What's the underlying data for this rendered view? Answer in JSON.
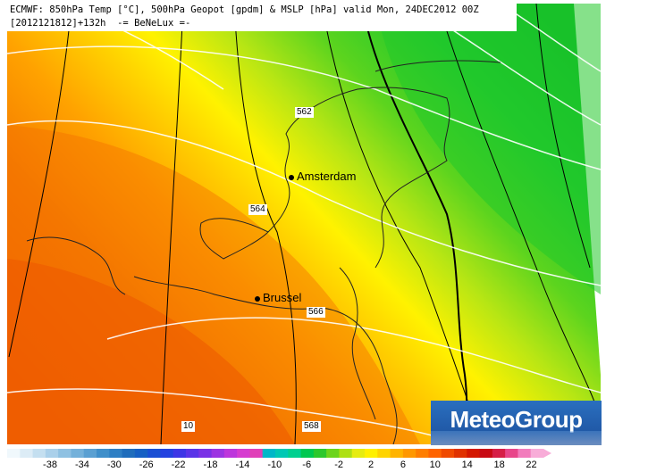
{
  "title": {
    "line1": "ECMWF: 850hPa Temp [°C], 500hPa Geopot [gpdm] & MSLP [hPa] valid Mon, 24DEC2012 00Z",
    "line2": "[2012121812]+132h  -= BeNeLux =-"
  },
  "cities": [
    {
      "name": "Amsterdam"
    },
    {
      "name": "Brussel"
    }
  ],
  "isolines": {
    "geopot_labels": [
      "562",
      "564",
      "566",
      "568"
    ],
    "mslp_labels": [
      "10"
    ]
  },
  "brand": {
    "name": "MeteoGroup",
    "color": "#1f5aa8"
  },
  "colorbar": {
    "ticks": [
      "-38",
      "-34",
      "-30",
      "-26",
      "-22",
      "-18",
      "-14",
      "-10",
      "-6",
      "-2",
      "2",
      "6",
      "10",
      "14",
      "18",
      "22"
    ],
    "colors": [
      "#f0f8fc",
      "#dcecf6",
      "#c4dff0",
      "#aad0ea",
      "#8fc1e2",
      "#74b1da",
      "#5aa0d2",
      "#3f8fca",
      "#2e7fc4",
      "#1f6dbc",
      "#1660c4",
      "#1a4fd4",
      "#2342e0",
      "#3d36e6",
      "#5a34e8",
      "#7a32e6",
      "#9c34e2",
      "#bd36dc",
      "#d63cd0",
      "#e040b8",
      "#00b7c8",
      "#00c8b4",
      "#00d090",
      "#00c850",
      "#2cc82c",
      "#6cd41c",
      "#aee014",
      "#e6ec10",
      "#fff000",
      "#ffd400",
      "#ffb400",
      "#ff9800",
      "#ff7e00",
      "#ff6400",
      "#f04a00",
      "#e03200",
      "#d41800",
      "#c80a14",
      "#d61e46",
      "#e8468a",
      "#f27cbc",
      "#f8acd8"
    ]
  }
}
